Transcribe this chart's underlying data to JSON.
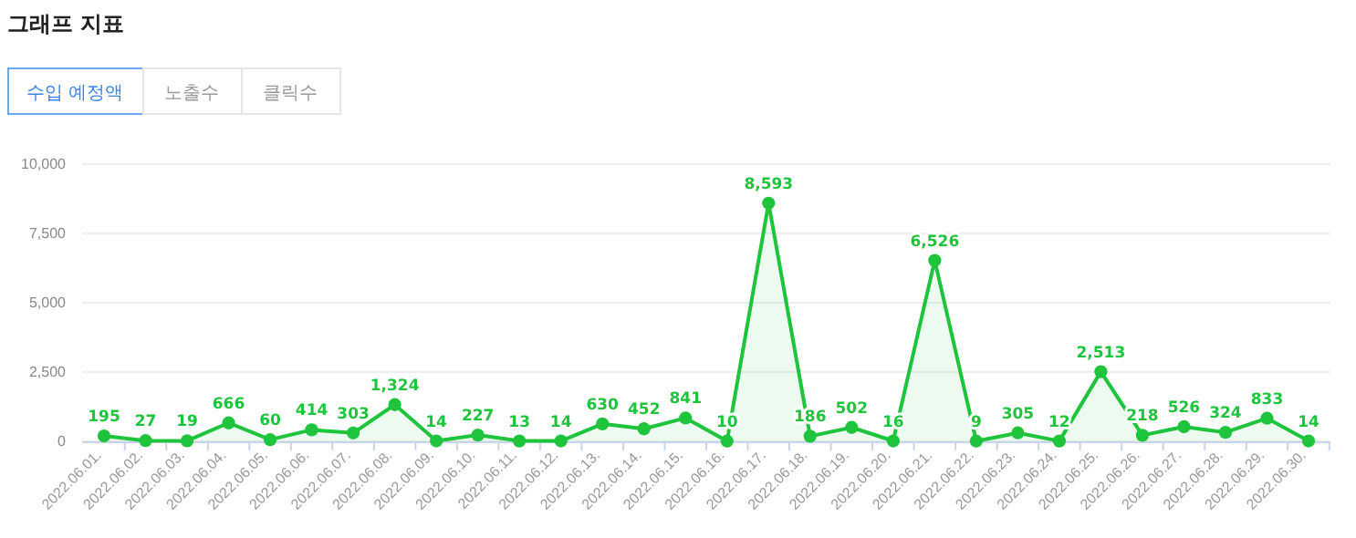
{
  "chart_data": {
    "type": "area",
    "title": "그래프 지표",
    "annotations": [
      "수입 예정액",
      "노출수",
      "클릭수"
    ],
    "categories": [
      "2022.06.01.",
      "2022.06.02.",
      "2022.06.03.",
      "2022.06.04.",
      "2022.06.05.",
      "2022.06.06.",
      "2022.06.07.",
      "2022.06.08.",
      "2022.06.09.",
      "2022.06.10.",
      "2022.06.11.",
      "2022.06.12.",
      "2022.06.13.",
      "2022.06.14.",
      "2022.06.15.",
      "2022.06.16.",
      "2022.06.17.",
      "2022.06.18.",
      "2022.06.19.",
      "2022.06.20.",
      "2022.06.21.",
      "2022.06.22.",
      "2022.06.23.",
      "2022.06.24.",
      "2022.06.25.",
      "2022.06.26.",
      "2022.06.27.",
      "2022.06.28.",
      "2022.06.29.",
      "2022.06.30."
    ],
    "series": [
      {
        "color": "#1ec43c",
        "values": [
          195,
          27,
          19,
          666,
          60,
          414,
          303,
          1324,
          14,
          227,
          13,
          14,
          630,
          452,
          841,
          10,
          8593,
          186,
          502,
          16,
          6526,
          9,
          305,
          12,
          2513,
          218,
          526,
          324,
          833,
          14
        ],
        "value_labels": [
          "195",
          "27",
          "19",
          "666",
          "60",
          "414",
          "303",
          "1,324",
          "14",
          "227",
          "13",
          "14",
          "630",
          "452",
          "841",
          "10",
          "8,593",
          "186",
          "502",
          "16",
          "6,526",
          "9",
          "305",
          "12",
          "2,513",
          "218",
          "526",
          "324",
          "833",
          "14"
        ]
      }
    ],
    "ylim": [
      0,
      10000
    ],
    "yticks": [
      {
        "value": 0,
        "label": "0"
      },
      {
        "value": 2500,
        "label": "2,500"
      },
      {
        "value": 5000,
        "label": "5,000"
      },
      {
        "value": 7500,
        "label": "7,500"
      },
      {
        "value": 10000,
        "label": "10,000"
      }
    ],
    "grid": "y",
    "marker": "circle"
  }
}
